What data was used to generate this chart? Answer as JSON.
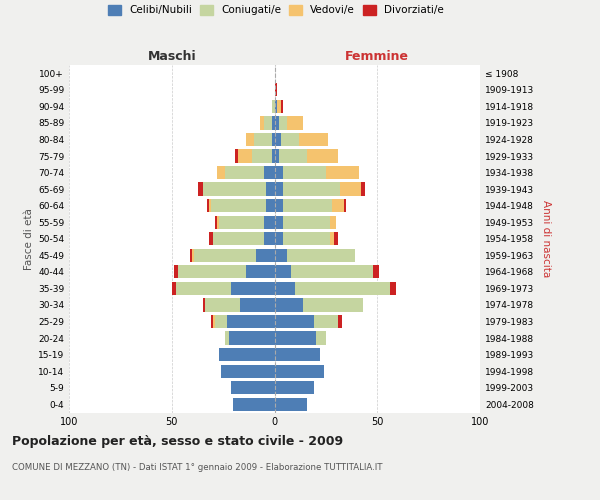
{
  "age_groups": [
    "0-4",
    "5-9",
    "10-14",
    "15-19",
    "20-24",
    "25-29",
    "30-34",
    "35-39",
    "40-44",
    "45-49",
    "50-54",
    "55-59",
    "60-64",
    "65-69",
    "70-74",
    "75-79",
    "80-84",
    "85-89",
    "90-94",
    "95-99",
    "100+"
  ],
  "birth_years": [
    "2004-2008",
    "1999-2003",
    "1994-1998",
    "1989-1993",
    "1984-1988",
    "1979-1983",
    "1974-1978",
    "1969-1973",
    "1964-1968",
    "1959-1963",
    "1954-1958",
    "1949-1953",
    "1944-1948",
    "1939-1943",
    "1934-1938",
    "1929-1933",
    "1924-1928",
    "1919-1923",
    "1914-1918",
    "1909-1913",
    "≤ 1908"
  ],
  "colors": {
    "celibi": "#4e7eb5",
    "coniugati": "#c5d5a0",
    "vedovi": "#f5c36e",
    "divorziati": "#cc2222"
  },
  "males": {
    "celibi": [
      20,
      21,
      26,
      27,
      22,
      23,
      17,
      21,
      14,
      9,
      5,
      5,
      4,
      4,
      5,
      1,
      1,
      1,
      0,
      0,
      0
    ],
    "coniugati": [
      0,
      0,
      0,
      0,
      2,
      6,
      17,
      27,
      33,
      30,
      25,
      22,
      27,
      31,
      19,
      10,
      9,
      4,
      1,
      0,
      0
    ],
    "vedovi": [
      0,
      0,
      0,
      0,
      0,
      1,
      0,
      0,
      0,
      1,
      0,
      1,
      1,
      0,
      4,
      7,
      4,
      2,
      0,
      0,
      0
    ],
    "divorziati": [
      0,
      0,
      0,
      0,
      0,
      1,
      1,
      2,
      2,
      1,
      2,
      1,
      1,
      2,
      0,
      1,
      0,
      0,
      0,
      0,
      0
    ]
  },
  "females": {
    "celibi": [
      16,
      19,
      24,
      22,
      20,
      19,
      14,
      10,
      8,
      6,
      4,
      4,
      4,
      4,
      4,
      2,
      3,
      2,
      1,
      0,
      0
    ],
    "coniugati": [
      0,
      0,
      0,
      0,
      5,
      12,
      29,
      46,
      40,
      33,
      23,
      23,
      24,
      28,
      21,
      14,
      9,
      4,
      0,
      0,
      0
    ],
    "vedovi": [
      0,
      0,
      0,
      0,
      0,
      0,
      0,
      0,
      0,
      0,
      2,
      3,
      6,
      10,
      16,
      15,
      14,
      8,
      2,
      0,
      0
    ],
    "divorziati": [
      0,
      0,
      0,
      0,
      0,
      2,
      0,
      3,
      3,
      0,
      2,
      0,
      1,
      2,
      0,
      0,
      0,
      0,
      1,
      1,
      0
    ]
  },
  "xlim": 100,
  "title": "Popolazione per età, sesso e stato civile - 2009",
  "subtitle": "COMUNE DI MEZZANO (TN) - Dati ISTAT 1° gennaio 2009 - Elaborazione TUTTITALIA.IT",
  "xlabel_left": "Maschi",
  "xlabel_right": "Femmine",
  "ylabel_left": "Fasce di età",
  "ylabel_right": "Anni di nascita",
  "bg_color": "#f0f0ee",
  "plot_bg_color": "#ffffff",
  "grid_color": "#cccccc"
}
